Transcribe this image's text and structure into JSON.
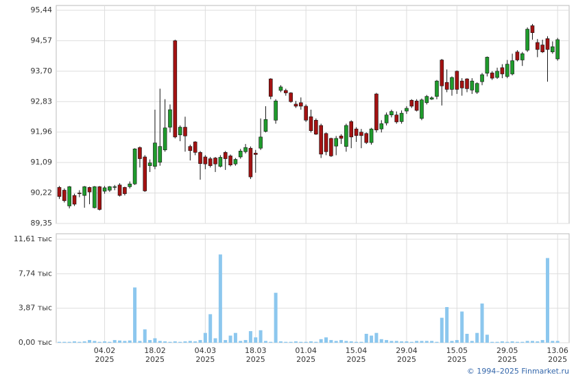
{
  "chart_data": [
    {
      "type": "candlestick",
      "open": [
        90.38,
        90.3,
        89.85,
        90.15,
        90.22,
        90.15,
        90.38,
        89.8,
        90.4,
        90.27,
        90.3,
        90.39,
        90.45,
        90.38,
        90.4,
        90.48,
        91.52,
        91.25,
        91.0,
        90.98,
        91.1,
        91.45,
        92.1,
        94.57,
        91.88,
        92.1,
        91.55,
        91.68,
        91.38,
        91.25,
        91.2,
        91.22,
        90.98,
        91.38,
        91.28,
        91.05,
        91.25,
        91.4,
        91.5,
        91.36,
        91.5,
        91.98,
        93.48,
        92.3,
        93.15,
        93.15,
        93.08,
        92.76,
        92.8,
        92.7,
        92.4,
        92.3,
        92.15,
        91.92,
        91.78,
        91.56,
        91.85,
        91.55,
        92.26,
        92.05,
        91.96,
        91.92,
        91.66,
        93.05,
        92.05,
        92.22,
        92.45,
        92.45,
        92.26,
        92.56,
        92.87,
        92.85,
        92.35,
        92.8,
        92.9,
        92.98,
        94.02,
        93.38,
        93.18,
        93.7,
        93.42,
        93.48,
        93.16,
        93.1,
        93.4,
        93.64,
        93.65,
        93.52,
        93.8,
        93.55,
        93.62,
        94.25,
        94.02,
        94.3,
        95.0,
        94.52,
        94.45,
        94.63,
        94.25,
        94.05
      ],
      "high": [
        90.42,
        90.35,
        90.42,
        90.2,
        90.3,
        90.42,
        90.4,
        90.42,
        90.42,
        90.42,
        90.42,
        90.45,
        90.5,
        90.4,
        90.55,
        91.5,
        91.55,
        91.3,
        91.18,
        92.6,
        93.2,
        92.9,
        92.75,
        94.6,
        92.15,
        92.4,
        91.6,
        91.7,
        91.42,
        91.3,
        91.25,
        91.25,
        91.3,
        91.42,
        91.32,
        91.22,
        91.48,
        91.62,
        91.55,
        91.45,
        92.35,
        92.7,
        93.5,
        92.9,
        93.3,
        93.2,
        93.1,
        92.85,
        92.95,
        92.75,
        92.6,
        92.35,
        92.2,
        91.95,
        91.8,
        91.85,
        91.9,
        92.2,
        92.3,
        92.1,
        92.05,
        91.95,
        92.08,
        93.08,
        92.3,
        92.52,
        92.6,
        92.55,
        92.58,
        92.7,
        92.9,
        92.9,
        92.92,
        93.02,
        92.98,
        93.45,
        94.05,
        93.75,
        93.55,
        93.72,
        93.5,
        93.5,
        93.5,
        93.38,
        93.65,
        94.12,
        93.7,
        93.8,
        93.9,
        94.02,
        94.2,
        94.3,
        94.25,
        94.95,
        95.05,
        94.62,
        94.6,
        94.7,
        94.55,
        94.65
      ],
      "low": [
        90.05,
        89.95,
        89.78,
        89.85,
        90.1,
        89.8,
        89.9,
        89.78,
        89.72,
        90.2,
        90.25,
        90.3,
        90.12,
        90.15,
        90.35,
        90.45,
        90.95,
        90.25,
        90.82,
        90.9,
        91.0,
        91.4,
        91.95,
        91.78,
        91.7,
        91.4,
        91.15,
        91.3,
        90.6,
        90.9,
        90.95,
        90.82,
        90.95,
        90.88,
        90.98,
        91.0,
        91.2,
        91.35,
        90.62,
        90.8,
        91.45,
        91.95,
        92.9,
        92.2,
        93.1,
        93.0,
        92.8,
        92.65,
        92.6,
        92.25,
        91.95,
        91.88,
        91.22,
        91.3,
        91.25,
        91.3,
        91.62,
        91.4,
        91.5,
        91.68,
        91.5,
        91.62,
        91.6,
        91.95,
        91.95,
        92.15,
        92.38,
        92.2,
        92.2,
        92.48,
        92.65,
        92.55,
        92.3,
        92.75,
        92.88,
        92.9,
        92.72,
        93.1,
        93.0,
        93.05,
        93.0,
        93.1,
        93.05,
        93.05,
        93.3,
        93.55,
        93.45,
        93.48,
        93.5,
        93.5,
        93.58,
        93.98,
        93.85,
        94.25,
        94.6,
        94.1,
        94.22,
        93.4,
        94.2,
        94.0
      ],
      "close": [
        90.12,
        90.0,
        90.4,
        89.9,
        90.2,
        90.4,
        90.25,
        90.4,
        89.75,
        90.37,
        90.4,
        90.4,
        90.15,
        90.2,
        90.48,
        91.48,
        91.2,
        90.28,
        91.08,
        91.65,
        91.55,
        92.08,
        92.6,
        91.82,
        92.1,
        91.85,
        91.43,
        91.38,
        91.06,
        91.05,
        91.0,
        91.05,
        91.24,
        91.2,
        91.02,
        91.18,
        91.42,
        91.52,
        90.68,
        91.32,
        91.82,
        92.32,
        92.98,
        92.85,
        93.25,
        93.08,
        92.83,
        92.7,
        92.7,
        92.3,
        92.0,
        91.9,
        91.33,
        91.4,
        91.28,
        91.78,
        91.78,
        92.15,
        91.82,
        91.86,
        91.86,
        91.66,
        92.05,
        92.02,
        92.2,
        92.45,
        92.55,
        92.25,
        92.5,
        92.64,
        92.7,
        92.58,
        92.88,
        92.98,
        92.94,
        93.42,
        93.28,
        93.18,
        93.52,
        93.18,
        93.22,
        93.2,
        93.42,
        93.35,
        93.6,
        94.1,
        93.5,
        93.7,
        93.62,
        93.9,
        94.0,
        94.02,
        94.2,
        94.9,
        94.8,
        94.32,
        94.25,
        94.32,
        94.4,
        94.6
      ],
      "up_color": "#1f9b2c",
      "down_color": "#a31212",
      "ylim": [
        89.35,
        95.44
      ],
      "yticks": [
        {
          "value": 95.44,
          "label": "95,44"
        },
        {
          "value": 94.57,
          "label": "94,57"
        },
        {
          "value": 93.7,
          "label": "93,70"
        },
        {
          "value": 92.83,
          "label": "92,83"
        },
        {
          "value": 91.96,
          "label": "91,96"
        },
        {
          "value": 91.09,
          "label": "91,09"
        },
        {
          "value": 90.22,
          "label": "90,22"
        },
        {
          "value": 89.35,
          "label": "89,35"
        }
      ],
      "grid": true
    },
    {
      "type": "bar",
      "categories": [
        null,
        null,
        null,
        null,
        null,
        null,
        null,
        null,
        null,
        "04.02 2025",
        null,
        null,
        null,
        null,
        null,
        null,
        null,
        null,
        null,
        "18.02 2025",
        null,
        null,
        null,
        null,
        null,
        null,
        null,
        null,
        null,
        "04.03 2025",
        null,
        null,
        null,
        null,
        null,
        null,
        null,
        null,
        null,
        "18.03 2025",
        null,
        null,
        null,
        null,
        null,
        null,
        null,
        null,
        null,
        "01.04 2025",
        null,
        null,
        null,
        null,
        null,
        null,
        null,
        null,
        null,
        "15.04 2025",
        null,
        null,
        null,
        null,
        null,
        null,
        null,
        null,
        null,
        "29.04 2025",
        null,
        null,
        null,
        null,
        null,
        null,
        null,
        null,
        null,
        "15.05 2025",
        null,
        null,
        null,
        null,
        null,
        null,
        null,
        null,
        null,
        "29.05 2025",
        null,
        null,
        null,
        null,
        null,
        null,
        null,
        null,
        null,
        "13.06 2025"
      ],
      "values": [
        0.1,
        0.1,
        0.1,
        0.15,
        0.1,
        0.15,
        0.3,
        0.2,
        0.1,
        0.15,
        0.1,
        0.3,
        0.25,
        0.2,
        0.25,
        6.2,
        0.2,
        1.5,
        0.3,
        0.5,
        0.2,
        0.15,
        0.1,
        0.15,
        0.1,
        0.15,
        0.2,
        0.15,
        0.3,
        1.1,
        3.2,
        0.5,
        9.9,
        0.3,
        0.8,
        1.1,
        0.2,
        0.3,
        1.3,
        0.6,
        1.4,
        0.2,
        0.1,
        5.6,
        0.15,
        0.1,
        0.1,
        0.15,
        0.1,
        0.1,
        0.15,
        0.1,
        0.4,
        0.6,
        0.3,
        0.2,
        0.3,
        0.2,
        0.15,
        0.1,
        0.1,
        1.0,
        0.8,
        1.1,
        0.4,
        0.3,
        0.2,
        0.2,
        0.15,
        0.15,
        0.1,
        0.2,
        0.2,
        0.2,
        0.2,
        0.1,
        2.8,
        4.0,
        0.2,
        0.3,
        3.5,
        1.0,
        0.2,
        1.1,
        4.4,
        0.9,
        0.1,
        0.1,
        0.15,
        0.1,
        0.15,
        0.1,
        0.1,
        0.2,
        0.2,
        0.15,
        0.3,
        9.5,
        0.2,
        0.2
      ],
      "color": "#8cc7ee",
      "ylim": [
        0,
        11.61
      ],
      "yticks": [
        {
          "value": 11.61,
          "label": "11,61 тыс"
        },
        {
          "value": 7.74,
          "label": "7,74 тыс"
        },
        {
          "value": 3.87,
          "label": "3,87 тыс"
        },
        {
          "value": 0,
          "label": "0,00 тыс"
        }
      ],
      "grid": true
    }
  ],
  "footer": "© 1994–2025 Finmarket.ru"
}
